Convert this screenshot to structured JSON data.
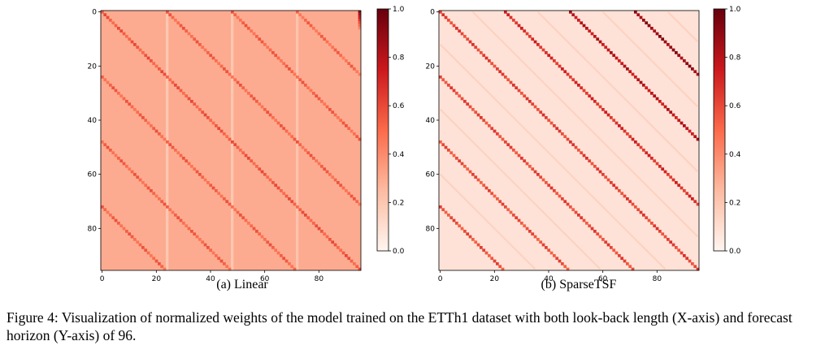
{
  "figure": {
    "caption": "Figure 4: Visualization of normalized weights of the model trained on the ETTh1 dataset with both look-back length (X-axis) and forecast horizon (Y-axis) of 96.",
    "colormap": [
      "#fff5f0",
      "#fcbba1",
      "#fb6a4a",
      "#cb181d",
      "#67000d"
    ]
  },
  "panels": [
    {
      "caption": "(a) Linear"
    },
    {
      "caption": "(b) SparseTSF"
    }
  ],
  "chart_data": [
    {
      "type": "heatmap",
      "title": "",
      "xlabel": "",
      "ylabel": "",
      "shape": [
        96,
        96
      ],
      "x_ticks": [
        "0",
        "20",
        "40",
        "60",
        "80"
      ],
      "y_ticks": [
        "0",
        "20",
        "40",
        "60",
        "80"
      ],
      "colorbar_ticks": [
        "0.0",
        "0.2",
        "0.4",
        "0.6",
        "0.8",
        "1.0"
      ],
      "value_range": [
        0,
        1
      ],
      "background_value": 0.3,
      "diagonal_bands": [
        {
          "x_at_row0": -72,
          "slope": 1,
          "value": 0.52
        },
        {
          "x_at_row0": -48,
          "slope": 1,
          "value": 0.52
        },
        {
          "x_at_row0": -24,
          "slope": 1,
          "value": 0.52
        },
        {
          "x_at_row0": 0,
          "slope": 1,
          "value": 0.55
        },
        {
          "x_at_row0": 24,
          "slope": 1,
          "value": 0.52
        },
        {
          "x_at_row0": 48,
          "slope": 1,
          "value": 0.52
        },
        {
          "x_at_row0": 72,
          "slope": 1,
          "value": 0.5
        }
      ],
      "bright_columns": [
        {
          "x": 24,
          "value": 0.18
        },
        {
          "x": 48,
          "value": 0.18
        },
        {
          "x": 72,
          "value": 0.2
        }
      ],
      "hot_corner": {
        "x": 95,
        "y_range": [
          0,
          6
        ],
        "value": 0.9
      }
    },
    {
      "type": "heatmap",
      "title": "",
      "xlabel": "",
      "ylabel": "",
      "shape": [
        96,
        96
      ],
      "x_ticks": [
        "0",
        "20",
        "40",
        "60",
        "80"
      ],
      "y_ticks": [
        "0",
        "20",
        "40",
        "60",
        "80"
      ],
      "colorbar_ticks": [
        "0.0",
        "0.2",
        "0.4",
        "0.6",
        "0.8",
        "1.0"
      ],
      "value_range": [
        0,
        1
      ],
      "background_value": 0.08,
      "diagonal_bands": [
        {
          "x_at_row0": -72,
          "slope": 1,
          "value": 0.58
        },
        {
          "x_at_row0": -48,
          "slope": 1,
          "value": 0.58
        },
        {
          "x_at_row0": -24,
          "slope": 1,
          "value": 0.6
        },
        {
          "x_at_row0": 0,
          "slope": 1,
          "value": 0.62
        },
        {
          "x_at_row0": 24,
          "slope": 1,
          "value": 0.68
        },
        {
          "x_at_row0": 48,
          "slope": 1,
          "value": 0.78
        },
        {
          "x_at_row0": 72,
          "slope": 1,
          "value": 0.88
        }
      ],
      "faint_bands": [
        {
          "x_at_row0": -60,
          "slope": 1,
          "value": 0.15
        },
        {
          "x_at_row0": -36,
          "slope": 1,
          "value": 0.15
        },
        {
          "x_at_row0": -12,
          "slope": 1,
          "value": 0.15
        },
        {
          "x_at_row0": 12,
          "slope": 1,
          "value": 0.15
        },
        {
          "x_at_row0": 36,
          "slope": 1,
          "value": 0.15
        },
        {
          "x_at_row0": 60,
          "slope": 1,
          "value": 0.15
        },
        {
          "x_at_row0": 84,
          "slope": 1,
          "value": 0.15
        }
      ],
      "hot_corner": null
    }
  ]
}
